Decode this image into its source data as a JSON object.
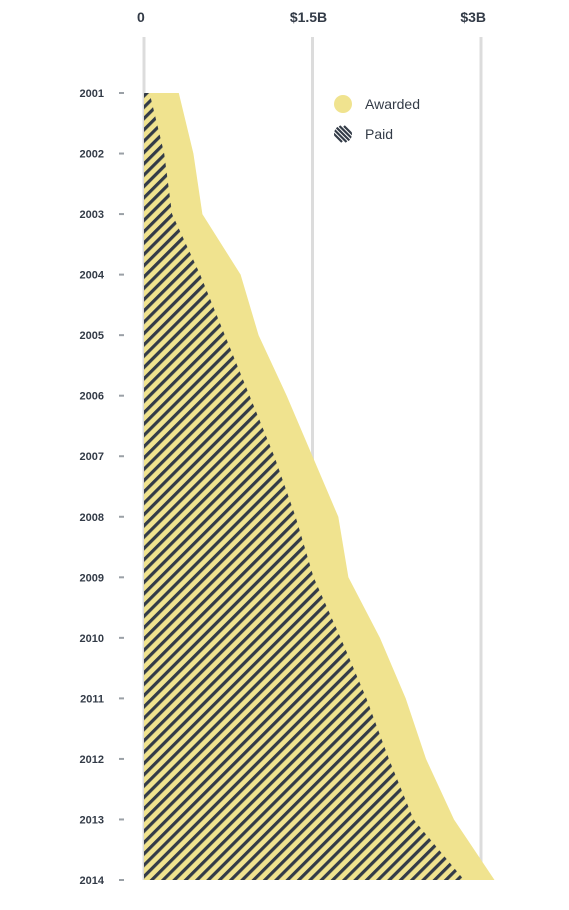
{
  "chart_data": {
    "type": "area",
    "orientation": "vertical-years",
    "title": "",
    "xlabel": "",
    "ylabel": "",
    "x_tick_labels": [
      "0",
      "$1.5B",
      "$3B"
    ],
    "x_tick_values": [
      0,
      1.5,
      3
    ],
    "xlim": [
      0,
      3.0
    ],
    "grid": true,
    "legend_position": "top-right",
    "categories": [
      "2001",
      "2002",
      "2003",
      "2004",
      "2005",
      "2006",
      "2007",
      "2008",
      "2009",
      "2010",
      "2011",
      "2012",
      "2013",
      "2014"
    ],
    "series": [
      {
        "name": "Awarded",
        "style": "solid",
        "color": "#f0e38f",
        "values": [
          0.31,
          0.44,
          0.52,
          0.86,
          1.02,
          1.27,
          1.5,
          1.73,
          1.82,
          2.1,
          2.33,
          2.51,
          2.76,
          3.12
        ]
      },
      {
        "name": "Paid",
        "style": "hatched",
        "color": "#333b47",
        "values": [
          0.05,
          0.18,
          0.25,
          0.5,
          0.72,
          0.94,
          1.16,
          1.35,
          1.51,
          1.75,
          1.98,
          2.18,
          2.4,
          2.85
        ]
      }
    ]
  }
}
